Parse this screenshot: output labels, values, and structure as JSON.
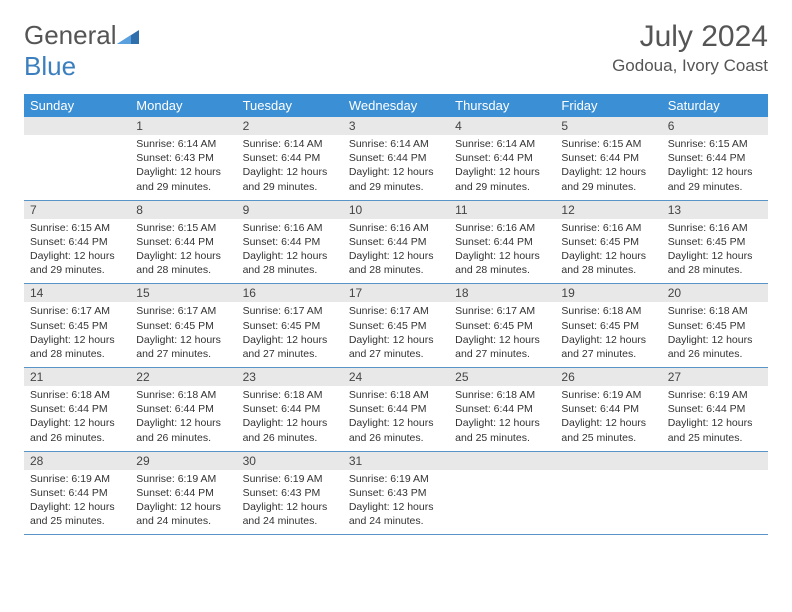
{
  "header": {
    "logo_text_1": "General",
    "logo_text_2": "Blue",
    "month_title": "July 2024",
    "location": "Godoua, Ivory Coast"
  },
  "colors": {
    "header_bg": "#3b8fd4",
    "header_text": "#ffffff",
    "daynum_bg": "#e8e8e8",
    "week_border": "#5a94c7",
    "text": "#333333",
    "logo_gray": "#666666",
    "logo_blue": "#3b7fbf"
  },
  "day_labels": [
    "Sunday",
    "Monday",
    "Tuesday",
    "Wednesday",
    "Thursday",
    "Friday",
    "Saturday"
  ],
  "weeks": [
    {
      "nums": [
        "",
        "1",
        "2",
        "3",
        "4",
        "5",
        "6"
      ],
      "cells": [
        "",
        "Sunrise: 6:14 AM\nSunset: 6:43 PM\nDaylight: 12 hours and 29 minutes.",
        "Sunrise: 6:14 AM\nSunset: 6:44 PM\nDaylight: 12 hours and 29 minutes.",
        "Sunrise: 6:14 AM\nSunset: 6:44 PM\nDaylight: 12 hours and 29 minutes.",
        "Sunrise: 6:14 AM\nSunset: 6:44 PM\nDaylight: 12 hours and 29 minutes.",
        "Sunrise: 6:15 AM\nSunset: 6:44 PM\nDaylight: 12 hours and 29 minutes.",
        "Sunrise: 6:15 AM\nSunset: 6:44 PM\nDaylight: 12 hours and 29 minutes."
      ]
    },
    {
      "nums": [
        "7",
        "8",
        "9",
        "10",
        "11",
        "12",
        "13"
      ],
      "cells": [
        "Sunrise: 6:15 AM\nSunset: 6:44 PM\nDaylight: 12 hours and 29 minutes.",
        "Sunrise: 6:15 AM\nSunset: 6:44 PM\nDaylight: 12 hours and 28 minutes.",
        "Sunrise: 6:16 AM\nSunset: 6:44 PM\nDaylight: 12 hours and 28 minutes.",
        "Sunrise: 6:16 AM\nSunset: 6:44 PM\nDaylight: 12 hours and 28 minutes.",
        "Sunrise: 6:16 AM\nSunset: 6:44 PM\nDaylight: 12 hours and 28 minutes.",
        "Sunrise: 6:16 AM\nSunset: 6:45 PM\nDaylight: 12 hours and 28 minutes.",
        "Sunrise: 6:16 AM\nSunset: 6:45 PM\nDaylight: 12 hours and 28 minutes."
      ]
    },
    {
      "nums": [
        "14",
        "15",
        "16",
        "17",
        "18",
        "19",
        "20"
      ],
      "cells": [
        "Sunrise: 6:17 AM\nSunset: 6:45 PM\nDaylight: 12 hours and 28 minutes.",
        "Sunrise: 6:17 AM\nSunset: 6:45 PM\nDaylight: 12 hours and 27 minutes.",
        "Sunrise: 6:17 AM\nSunset: 6:45 PM\nDaylight: 12 hours and 27 minutes.",
        "Sunrise: 6:17 AM\nSunset: 6:45 PM\nDaylight: 12 hours and 27 minutes.",
        "Sunrise: 6:17 AM\nSunset: 6:45 PM\nDaylight: 12 hours and 27 minutes.",
        "Sunrise: 6:18 AM\nSunset: 6:45 PM\nDaylight: 12 hours and 27 minutes.",
        "Sunrise: 6:18 AM\nSunset: 6:45 PM\nDaylight: 12 hours and 26 minutes."
      ]
    },
    {
      "nums": [
        "21",
        "22",
        "23",
        "24",
        "25",
        "26",
        "27"
      ],
      "cells": [
        "Sunrise: 6:18 AM\nSunset: 6:44 PM\nDaylight: 12 hours and 26 minutes.",
        "Sunrise: 6:18 AM\nSunset: 6:44 PM\nDaylight: 12 hours and 26 minutes.",
        "Sunrise: 6:18 AM\nSunset: 6:44 PM\nDaylight: 12 hours and 26 minutes.",
        "Sunrise: 6:18 AM\nSunset: 6:44 PM\nDaylight: 12 hours and 26 minutes.",
        "Sunrise: 6:18 AM\nSunset: 6:44 PM\nDaylight: 12 hours and 25 minutes.",
        "Sunrise: 6:19 AM\nSunset: 6:44 PM\nDaylight: 12 hours and 25 minutes.",
        "Sunrise: 6:19 AM\nSunset: 6:44 PM\nDaylight: 12 hours and 25 minutes."
      ]
    },
    {
      "nums": [
        "28",
        "29",
        "30",
        "31",
        "",
        "",
        ""
      ],
      "cells": [
        "Sunrise: 6:19 AM\nSunset: 6:44 PM\nDaylight: 12 hours and 25 minutes.",
        "Sunrise: 6:19 AM\nSunset: 6:44 PM\nDaylight: 12 hours and 24 minutes.",
        "Sunrise: 6:19 AM\nSunset: 6:43 PM\nDaylight: 12 hours and 24 minutes.",
        "Sunrise: 6:19 AM\nSunset: 6:43 PM\nDaylight: 12 hours and 24 minutes.",
        "",
        "",
        ""
      ]
    }
  ]
}
